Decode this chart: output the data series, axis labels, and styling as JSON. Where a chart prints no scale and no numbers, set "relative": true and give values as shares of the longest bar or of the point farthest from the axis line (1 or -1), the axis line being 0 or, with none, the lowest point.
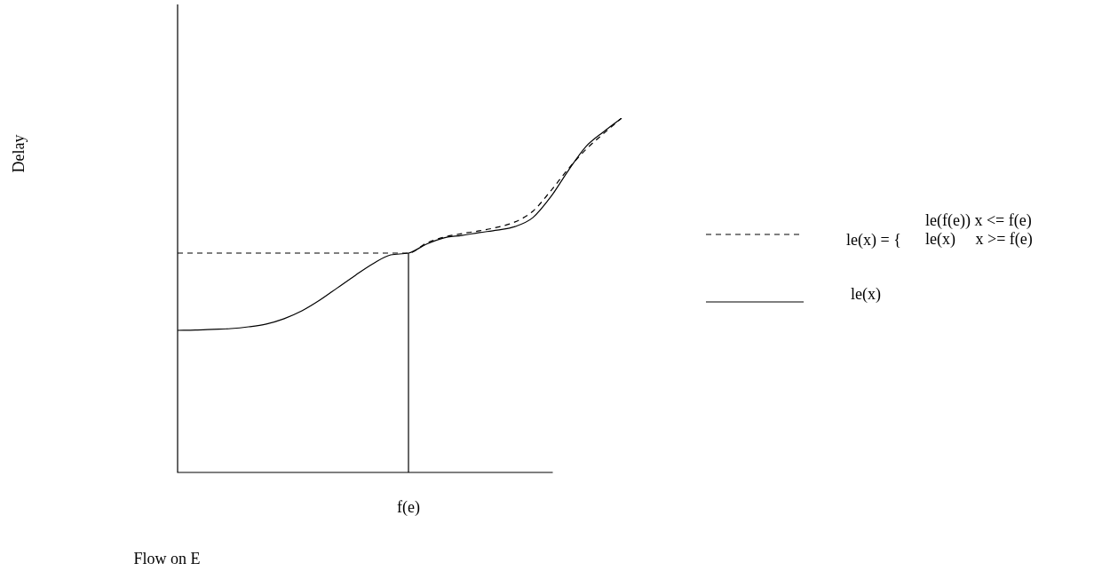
{
  "chart_data": {
    "type": "line",
    "relative": true,
    "xlabel": "Flow on E",
    "categories": [
      null,
      null,
      null,
      null,
      null,
      null,
      null,
      null,
      null,
      null,
      null,
      null,
      null,
      null,
      null,
      null,
      null,
      null,
      null,
      null,
      null,
      null,
      null,
      null,
      null,
      null
    ],
    "series": [
      {
        "name": "le(x) = {",
        "color": "#000000",
        "line_style": "dashed",
        "values": [
          0.619,
          0.619,
          0.619,
          0.619,
          0.619,
          0.619,
          0.619,
          0.619,
          0.619,
          0.619,
          0.619,
          0.619,
          0.619,
          0.619,
          0.647,
          0.664,
          0.674,
          0.682,
          0.692,
          0.707,
          0.737,
          0.794,
          0.857,
          0.912,
          0.957,
          1
        ]
      },
      {
        "name": "le(x)",
        "color": "#000000",
        "line_style": "solid",
        "values": [
          0.401,
          0.402,
          0.404,
          0.406,
          0.411,
          0.419,
          0.434,
          0.456,
          0.486,
          0.521,
          0.556,
          0.589,
          0.614,
          0.619,
          0.644,
          0.662,
          0.669,
          0.677,
          0.684,
          0.694,
          0.719,
          0.777,
          0.852,
          0.92,
          0.962,
          1
        ]
      }
    ],
    "annotations": [
      "Delay",
      "f(e)",
      "le(f(e)) x <= f(e)",
      "le(x)     x >= f(e)"
    ],
    "legend": "right",
    "marker": "none"
  }
}
